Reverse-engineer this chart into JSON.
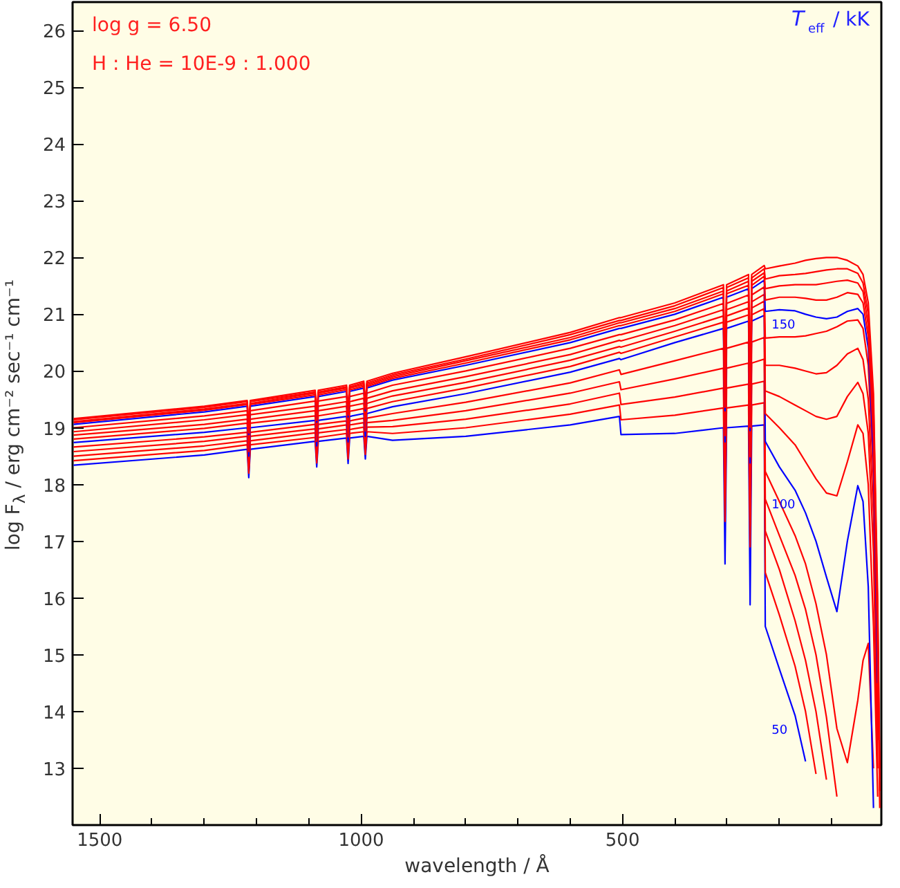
{
  "chart_data": {
    "type": "line",
    "xlabel": "wavelength / Å",
    "ylabel": "log F$_{λ}$ / erg cm⁻² sec⁻¹ cm⁻¹",
    "legend_title": "T$_{eff}$ / kK",
    "annotations": [
      "log g = 6.50",
      "H : He = 10E-9 : 1.000"
    ],
    "xlim": [
      1552,
      5
    ],
    "ylim": [
      12.0,
      26.5
    ],
    "xticks": [
      1500,
      1000,
      500,
      {
        "value": 1400,
        "label": null
      },
      {
        "value": 1300,
        "label": null
      },
      {
        "value": 1200,
        "label": null
      },
      {
        "value": 1100,
        "label": null
      },
      {
        "value": 900,
        "label": null
      },
      {
        "value": 800,
        "label": null
      },
      {
        "value": 700,
        "label": null
      },
      {
        "value": 600,
        "label": null
      },
      {
        "value": 400,
        "label": null
      },
      {
        "value": 300,
        "label": null
      },
      {
        "value": 200,
        "label": null
      },
      {
        "value": 100,
        "label": null
      }
    ],
    "yticks": [
      13,
      14,
      15,
      16,
      17,
      18,
      19,
      20,
      21,
      22,
      23,
      24,
      25,
      26
    ],
    "grid": false,
    "legend": false,
    "marker": "none",
    "line_style": "solid",
    "x": [
      1550,
      1300,
      1218,
      1215,
      1212,
      1088,
      1085,
      1082,
      1028,
      1025,
      1022,
      995,
      992,
      989,
      940,
      800,
      600,
      506,
      503,
      400,
      307,
      304,
      301,
      259,
      256,
      253,
      229,
      227,
      200,
      170,
      150,
      130,
      110,
      90,
      70,
      50,
      40,
      30,
      20,
      12,
      8
    ],
    "series": [
      {
        "name": "50",
        "color": "#0000ff",
        "values": [
          18.34,
          18.52,
          18.62,
          18.12,
          18.62,
          18.76,
          18.31,
          18.76,
          18.82,
          18.37,
          18.82,
          18.85,
          18.45,
          18.85,
          18.78,
          18.85,
          19.05,
          19.2,
          18.88,
          18.9,
          19.0,
          16.6,
          19.0,
          19.03,
          15.88,
          19.03,
          19.05,
          15.5,
          14.75,
          13.93,
          13.12,
          null,
          null,
          null,
          null,
          null,
          null,
          null,
          null,
          null,
          null
        ]
      },
      {
        "color": "#ff0000",
        "values": [
          18.42,
          18.6,
          18.7,
          18.2,
          18.7,
          18.83,
          18.38,
          18.83,
          18.9,
          18.45,
          18.9,
          18.93,
          18.53,
          18.93,
          18.9,
          19.0,
          19.24,
          19.4,
          19.14,
          19.22,
          19.35,
          17.35,
          19.35,
          19.4,
          16.9,
          19.4,
          19.44,
          16.45,
          15.7,
          14.8,
          14.0,
          12.9,
          null,
          null,
          null,
          null,
          null,
          null,
          null,
          null,
          null
        ]
      },
      {
        "color": "#ff0000",
        "values": [
          18.5,
          18.68,
          18.77,
          18.27,
          18.77,
          18.91,
          18.46,
          18.91,
          18.97,
          18.52,
          18.97,
          19.01,
          18.61,
          19.01,
          19.02,
          19.15,
          19.42,
          19.61,
          19.41,
          19.54,
          19.7,
          17.7,
          19.7,
          19.77,
          17.27,
          19.77,
          19.82,
          17.18,
          16.5,
          15.6,
          14.9,
          14.0,
          12.8,
          null,
          null,
          null,
          null,
          null,
          null,
          null,
          null
        ]
      },
      {
        "color": "#ff0000",
        "values": [
          18.58,
          18.76,
          18.85,
          18.35,
          18.85,
          18.98,
          18.53,
          18.98,
          19.05,
          18.6,
          19.05,
          19.09,
          18.69,
          19.09,
          19.13,
          19.3,
          19.61,
          19.81,
          19.67,
          19.86,
          20.05,
          18.05,
          20.05,
          20.14,
          17.64,
          20.14,
          20.21,
          17.74,
          17.1,
          16.4,
          15.8,
          15.0,
          13.9,
          12.5,
          null,
          null,
          null,
          null,
          null,
          null,
          null
        ]
      },
      {
        "color": "#ff0000",
        "values": [
          18.66,
          18.84,
          18.92,
          18.42,
          18.92,
          19.06,
          18.61,
          19.06,
          19.12,
          18.67,
          19.12,
          19.17,
          18.77,
          19.17,
          19.25,
          19.45,
          19.79,
          20.02,
          19.94,
          20.18,
          20.4,
          18.4,
          20.4,
          20.51,
          18.01,
          20.51,
          20.59,
          18.23,
          17.7,
          17.1,
          16.6,
          15.9,
          15.0,
          13.7,
          13.1,
          14.2,
          14.9,
          15.2,
          13.0,
          null,
          null
        ]
      },
      {
        "name": "100",
        "color": "#0000ff",
        "values": [
          18.74,
          18.92,
          19.0,
          18.5,
          19.0,
          19.13,
          18.68,
          19.13,
          19.2,
          18.75,
          19.2,
          19.25,
          18.85,
          19.25,
          19.37,
          19.6,
          19.98,
          20.22,
          20.2,
          20.5,
          20.75,
          18.75,
          20.75,
          20.88,
          18.38,
          20.88,
          20.98,
          18.76,
          18.31,
          17.9,
          17.5,
          17.0,
          16.37,
          15.76,
          17.0,
          17.98,
          17.7,
          16.2,
          12.3,
          null,
          null
        ]
      },
      {
        "color": "#ff0000",
        "values": [
          18.8,
          18.99,
          19.08,
          18.58,
          19.08,
          19.21,
          18.76,
          19.21,
          19.29,
          18.84,
          19.29,
          19.34,
          18.94,
          19.34,
          19.46,
          19.7,
          20.08,
          20.33,
          20.31,
          20.6,
          20.86,
          18.86,
          20.86,
          20.99,
          18.49,
          20.99,
          21.1,
          19.25,
          19.0,
          18.7,
          18.4,
          18.1,
          17.85,
          17.8,
          18.4,
          19.05,
          18.9,
          18.0,
          15.5,
          12.5,
          null
        ]
      },
      {
        "color": "#ff0000",
        "values": [
          18.87,
          19.06,
          19.15,
          18.65,
          19.15,
          19.3,
          18.85,
          19.3,
          19.38,
          18.93,
          19.38,
          19.43,
          19.03,
          19.43,
          19.56,
          19.8,
          20.19,
          20.43,
          20.42,
          20.7,
          20.97,
          18.97,
          20.97,
          21.11,
          18.61,
          21.11,
          21.23,
          19.65,
          19.55,
          19.4,
          19.3,
          19.2,
          19.15,
          19.2,
          19.55,
          19.8,
          19.6,
          18.9,
          16.8,
          13.0,
          null
        ]
      },
      {
        "color": "#ff0000",
        "values": [
          18.93,
          19.14,
          19.23,
          18.73,
          19.23,
          19.38,
          18.93,
          19.38,
          19.46,
          19.01,
          19.46,
          19.52,
          19.12,
          19.52,
          19.65,
          19.9,
          20.29,
          20.54,
          20.53,
          20.8,
          21.08,
          19.08,
          21.08,
          21.22,
          18.72,
          21.22,
          21.35,
          20.1,
          20.1,
          20.05,
          20.0,
          19.95,
          19.97,
          20.1,
          20.3,
          20.4,
          20.2,
          19.5,
          17.5,
          13.5,
          null
        ]
      },
      {
        "color": "#ff0000",
        "values": [
          19.0,
          19.21,
          19.3,
          18.8,
          19.3,
          19.47,
          19.02,
          19.47,
          19.55,
          19.1,
          19.55,
          19.61,
          19.21,
          19.61,
          19.75,
          20.0,
          20.4,
          20.64,
          20.64,
          20.9,
          21.19,
          19.19,
          21.19,
          21.34,
          18.84,
          21.34,
          21.48,
          20.58,
          20.6,
          20.6,
          20.62,
          20.66,
          20.7,
          20.78,
          20.88,
          20.9,
          20.75,
          20.1,
          18.1,
          14.0,
          null
        ]
      },
      {
        "name": "150",
        "color": "#0000ff",
        "values": [
          19.06,
          19.28,
          19.38,
          18.88,
          19.38,
          19.55,
          19.1,
          19.55,
          19.64,
          19.19,
          19.64,
          19.7,
          19.3,
          19.7,
          19.84,
          20.1,
          20.5,
          20.75,
          20.75,
          21.0,
          21.3,
          19.3,
          21.3,
          21.45,
          18.95,
          21.45,
          21.6,
          21.05,
          21.08,
          21.06,
          21.0,
          20.95,
          20.92,
          20.95,
          21.05,
          21.1,
          21.0,
          20.4,
          18.5,
          14.5,
          null
        ]
      },
      {
        "color": "#ff0000",
        "values": [
          19.09,
          19.31,
          19.41,
          18.91,
          19.41,
          19.58,
          19.13,
          19.58,
          19.67,
          19.22,
          19.67,
          19.73,
          19.33,
          19.73,
          19.87,
          20.14,
          20.55,
          20.8,
          20.8,
          21.05,
          21.36,
          19.36,
          21.36,
          21.51,
          19.01,
          21.51,
          21.67,
          21.25,
          21.3,
          21.3,
          21.28,
          21.25,
          21.25,
          21.3,
          21.38,
          21.35,
          21.2,
          20.6,
          18.8,
          15.0,
          12.3
        ]
      },
      {
        "color": "#ff0000",
        "values": [
          19.11,
          19.33,
          19.43,
          18.93,
          19.43,
          19.61,
          19.16,
          19.61,
          19.7,
          19.25,
          19.7,
          19.76,
          19.36,
          19.76,
          19.9,
          20.18,
          20.59,
          20.85,
          20.85,
          21.1,
          21.41,
          19.41,
          21.41,
          21.58,
          19.08,
          21.58,
          21.73,
          21.45,
          21.5,
          21.52,
          21.52,
          21.52,
          21.55,
          21.58,
          21.6,
          21.55,
          21.4,
          20.8,
          19.1,
          15.4,
          12.6
        ]
      },
      {
        "color": "#ff0000",
        "values": [
          19.14,
          19.36,
          19.46,
          18.96,
          19.46,
          19.63,
          19.18,
          19.63,
          19.72,
          19.27,
          19.72,
          19.79,
          19.39,
          19.79,
          19.93,
          20.21,
          20.64,
          20.89,
          20.89,
          21.15,
          21.47,
          19.47,
          21.47,
          21.64,
          19.14,
          21.64,
          21.8,
          21.62,
          21.68,
          21.7,
          21.72,
          21.75,
          21.78,
          21.8,
          21.8,
          21.72,
          21.55,
          21.0,
          19.4,
          15.7,
          12.8
        ]
      },
      {
        "color": "#ff0000",
        "values": [
          19.16,
          19.38,
          19.48,
          18.98,
          19.48,
          19.66,
          19.21,
          19.66,
          19.75,
          19.3,
          19.75,
          19.82,
          19.42,
          19.82,
          19.96,
          20.25,
          20.68,
          20.94,
          20.94,
          21.2,
          21.52,
          19.52,
          21.52,
          21.7,
          19.2,
          21.7,
          21.86,
          21.8,
          21.85,
          21.9,
          21.95,
          21.98,
          22.0,
          22.0,
          21.95,
          21.85,
          21.7,
          21.2,
          19.6,
          16.0,
          13.0
        ]
      }
    ]
  }
}
